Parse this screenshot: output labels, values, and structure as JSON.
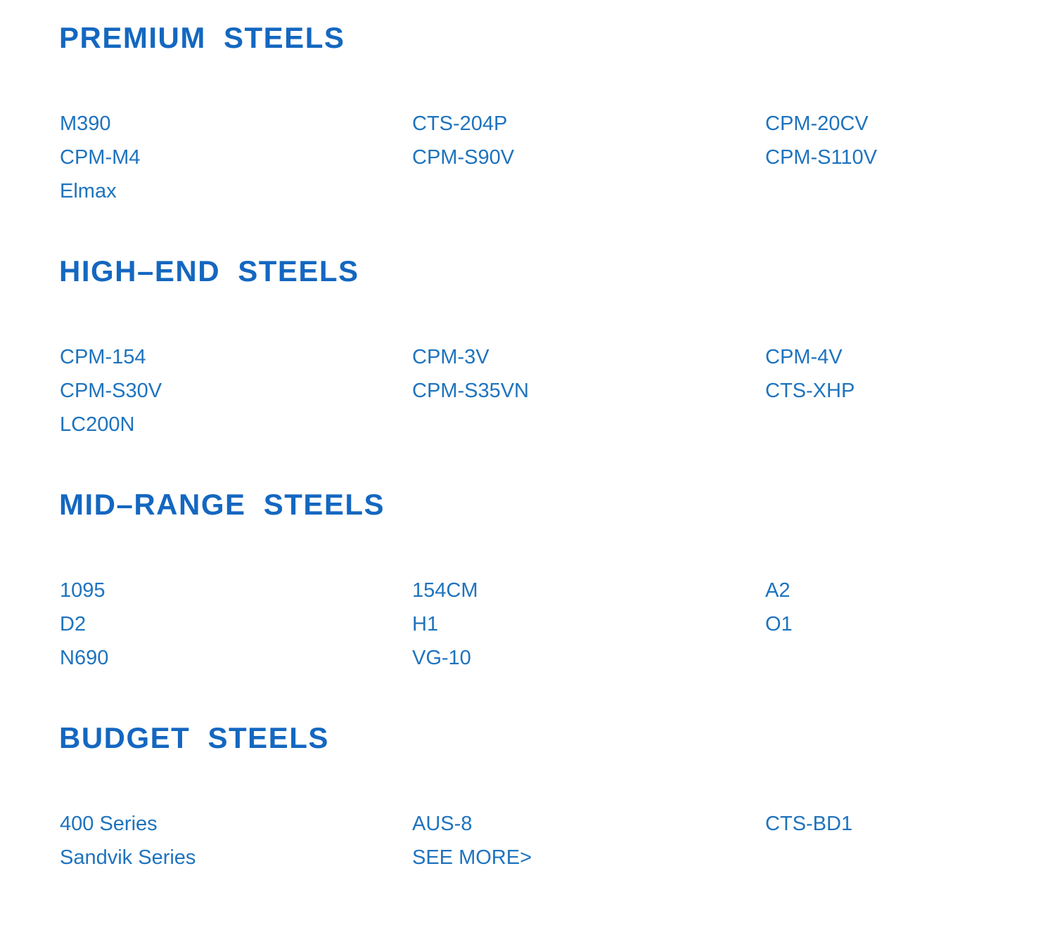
{
  "colors": {
    "heading": "#1467c0",
    "link": "#1e73be",
    "background": "#ffffff"
  },
  "sections": [
    {
      "title": "PREMIUM STEELS",
      "cols": [
        [
          "M390",
          "CPM-M4",
          "Elmax"
        ],
        [
          "CTS-204P",
          "CPM-S90V"
        ],
        [
          "CPM-20CV",
          "CPM-S110V"
        ]
      ]
    },
    {
      "title": "HIGH–END STEELS",
      "cols": [
        [
          "CPM-154",
          "CPM-S30V",
          "LC200N"
        ],
        [
          "CPM-3V",
          "CPM-S35VN"
        ],
        [
          "CPM-4V",
          "CTS-XHP"
        ]
      ]
    },
    {
      "title": "MID–RANGE STEELS",
      "cols": [
        [
          "1095",
          "D2",
          "N690"
        ],
        [
          "154CM",
          "H1",
          "VG-10"
        ],
        [
          "A2",
          "O1"
        ]
      ]
    },
    {
      "title": "BUDGET STEELS",
      "cols": [
        [
          "400 Series",
          "Sandvik Series"
        ],
        [
          "AUS-8",
          "SEE MORE>"
        ],
        [
          "CTS-BD1"
        ]
      ]
    }
  ]
}
